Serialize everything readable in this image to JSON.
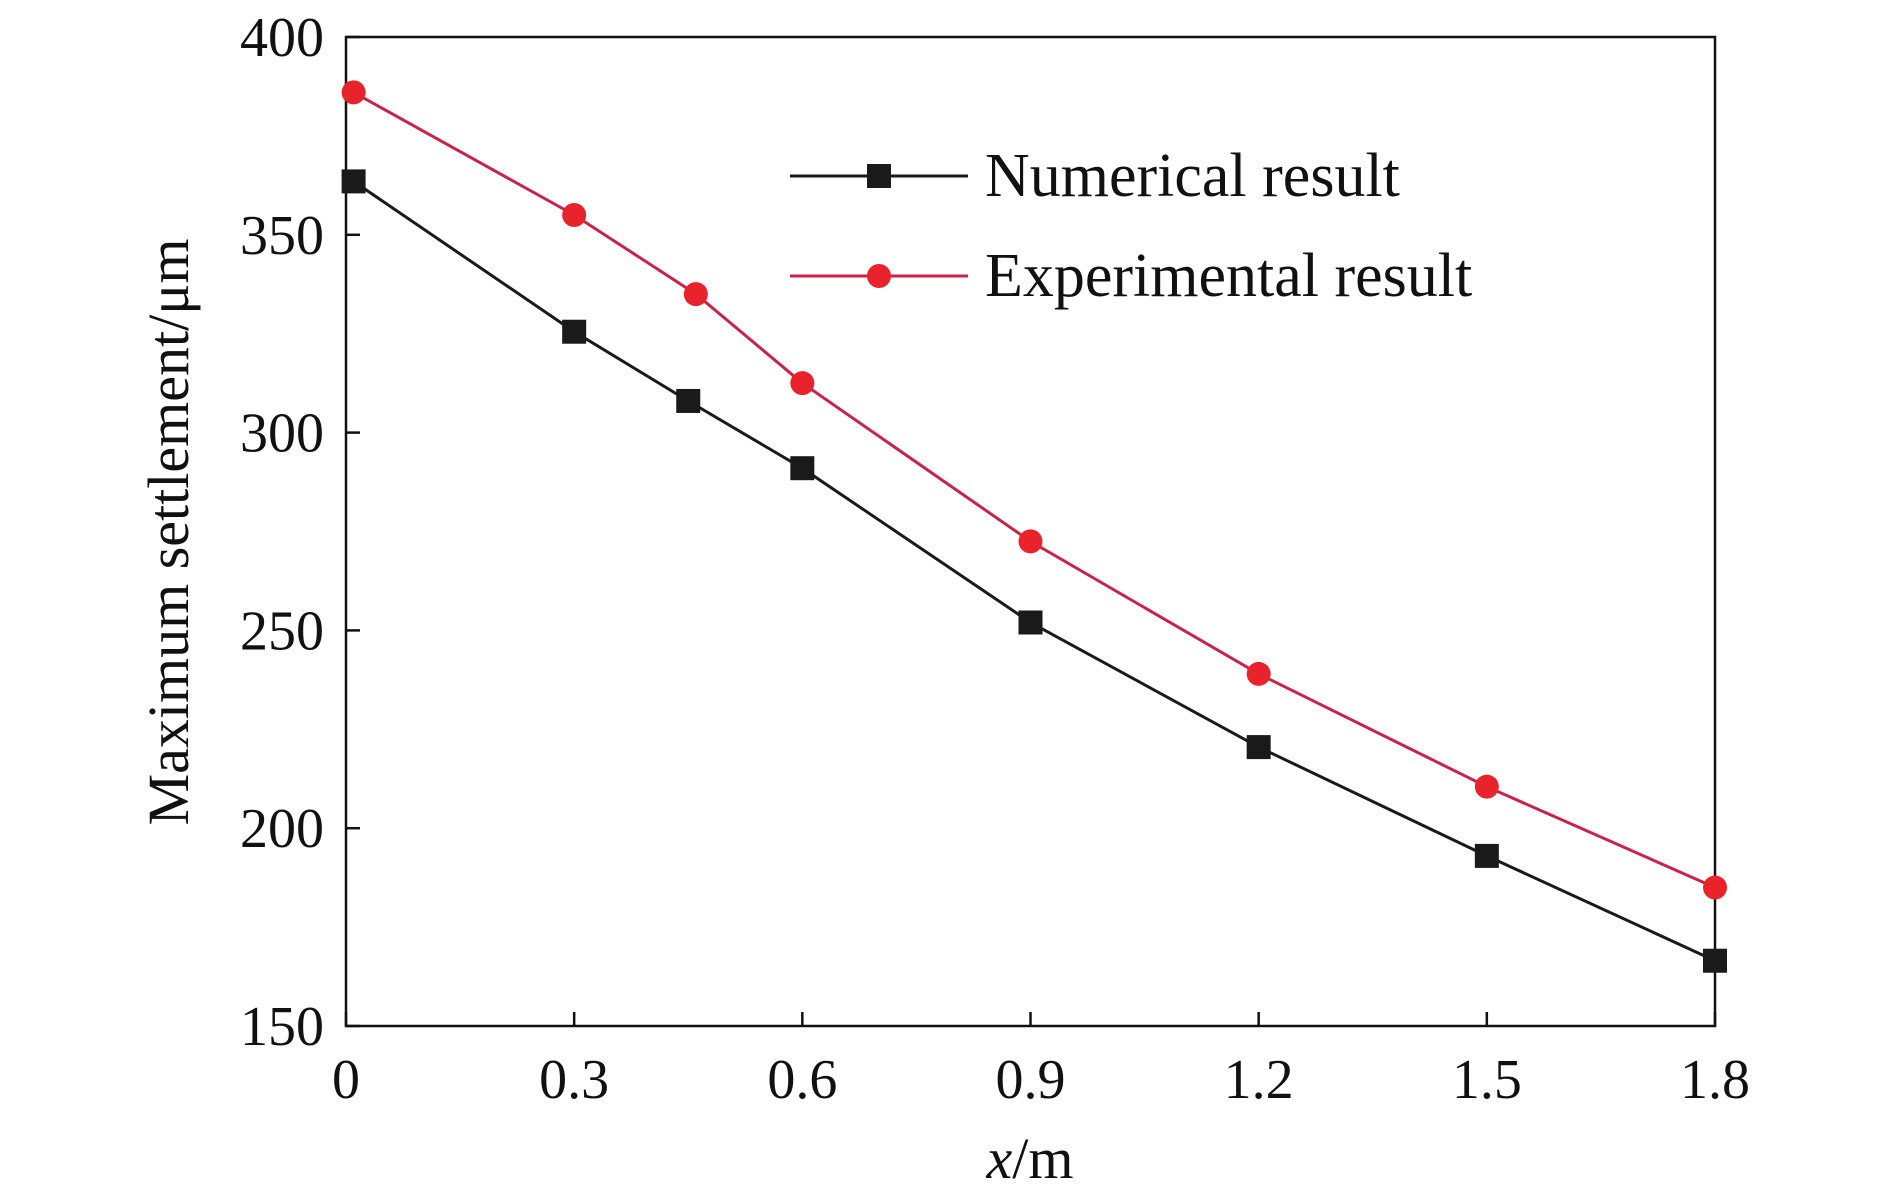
{
  "chart_data": {
    "type": "line",
    "xlabel": "x/m",
    "xlabel_var": "x",
    "xlabel_unit": "/m",
    "ylabel": "Maximum settlement/μm",
    "xlim": [
      0,
      1.8
    ],
    "ylim": [
      150,
      400
    ],
    "x_ticks": [
      0,
      0.3,
      0.6,
      0.9,
      1.2,
      1.5,
      1.8
    ],
    "x_tick_labels": [
      "0",
      "0.3",
      "0.6",
      "0.9",
      "1.2",
      "1.5",
      "1.8"
    ],
    "y_ticks": [
      150,
      200,
      250,
      300,
      350,
      400
    ],
    "y_tick_labels": [
      "150",
      "200",
      "250",
      "300",
      "350",
      "400"
    ],
    "grid": false,
    "legend_position": "top-right",
    "series": [
      {
        "name": "Numerical result",
        "marker": "square",
        "color": "#1a1a1a",
        "line_color": "#1a1a1a",
        "x": [
          0.01,
          0.3,
          0.45,
          0.6,
          0.9,
          1.2,
          1.5,
          1.8
        ],
        "y": [
          363.5,
          325.5,
          308,
          291,
          252,
          220.5,
          193,
          166.5
        ]
      },
      {
        "name": "Experimental result",
        "marker": "circle",
        "color": "#e8232b",
        "line_color": "#c8234a",
        "x": [
          0.01,
          0.3,
          0.46,
          0.6,
          0.9,
          1.2,
          1.5,
          1.8
        ],
        "y": [
          386,
          355,
          335,
          312.5,
          272.5,
          239,
          210.5,
          185
        ]
      }
    ]
  }
}
